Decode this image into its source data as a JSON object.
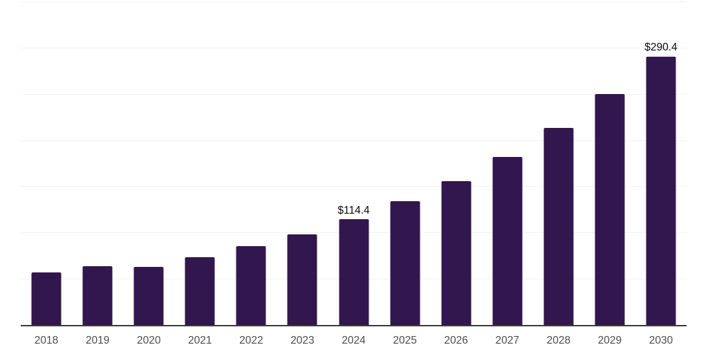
{
  "chart": {
    "background": "#ffffff",
    "bar_color": "#31174e",
    "grid_color": "#f1f1f1",
    "axis_line_color": "#3a3a3a",
    "tick_label_color": "#4d4d4d",
    "value_label_color": "#0a0a0a"
  },
  "chart_data": {
    "type": "bar",
    "title": "",
    "xlabel": "",
    "ylabel": "",
    "categories": [
      "2018",
      "2019",
      "2020",
      "2021",
      "2022",
      "2023",
      "2024",
      "2025",
      "2026",
      "2027",
      "2028",
      "2029",
      "2030"
    ],
    "values": [
      56.8,
      63.5,
      62.6,
      73.4,
      85.0,
      98.0,
      114.4,
      133.9,
      155.8,
      182.0,
      212.9,
      249.6,
      290.4
    ],
    "data_labels": [
      "",
      "",
      "",
      "",
      "",
      "",
      "$114.4",
      "",
      "",
      "",
      "",
      "",
      "$290.4"
    ],
    "ylim": [
      0,
      350
    ],
    "grid_step": 50,
    "grid": "horizontal-only",
    "y_axis_tick_labels": "none",
    "legend": "none"
  }
}
